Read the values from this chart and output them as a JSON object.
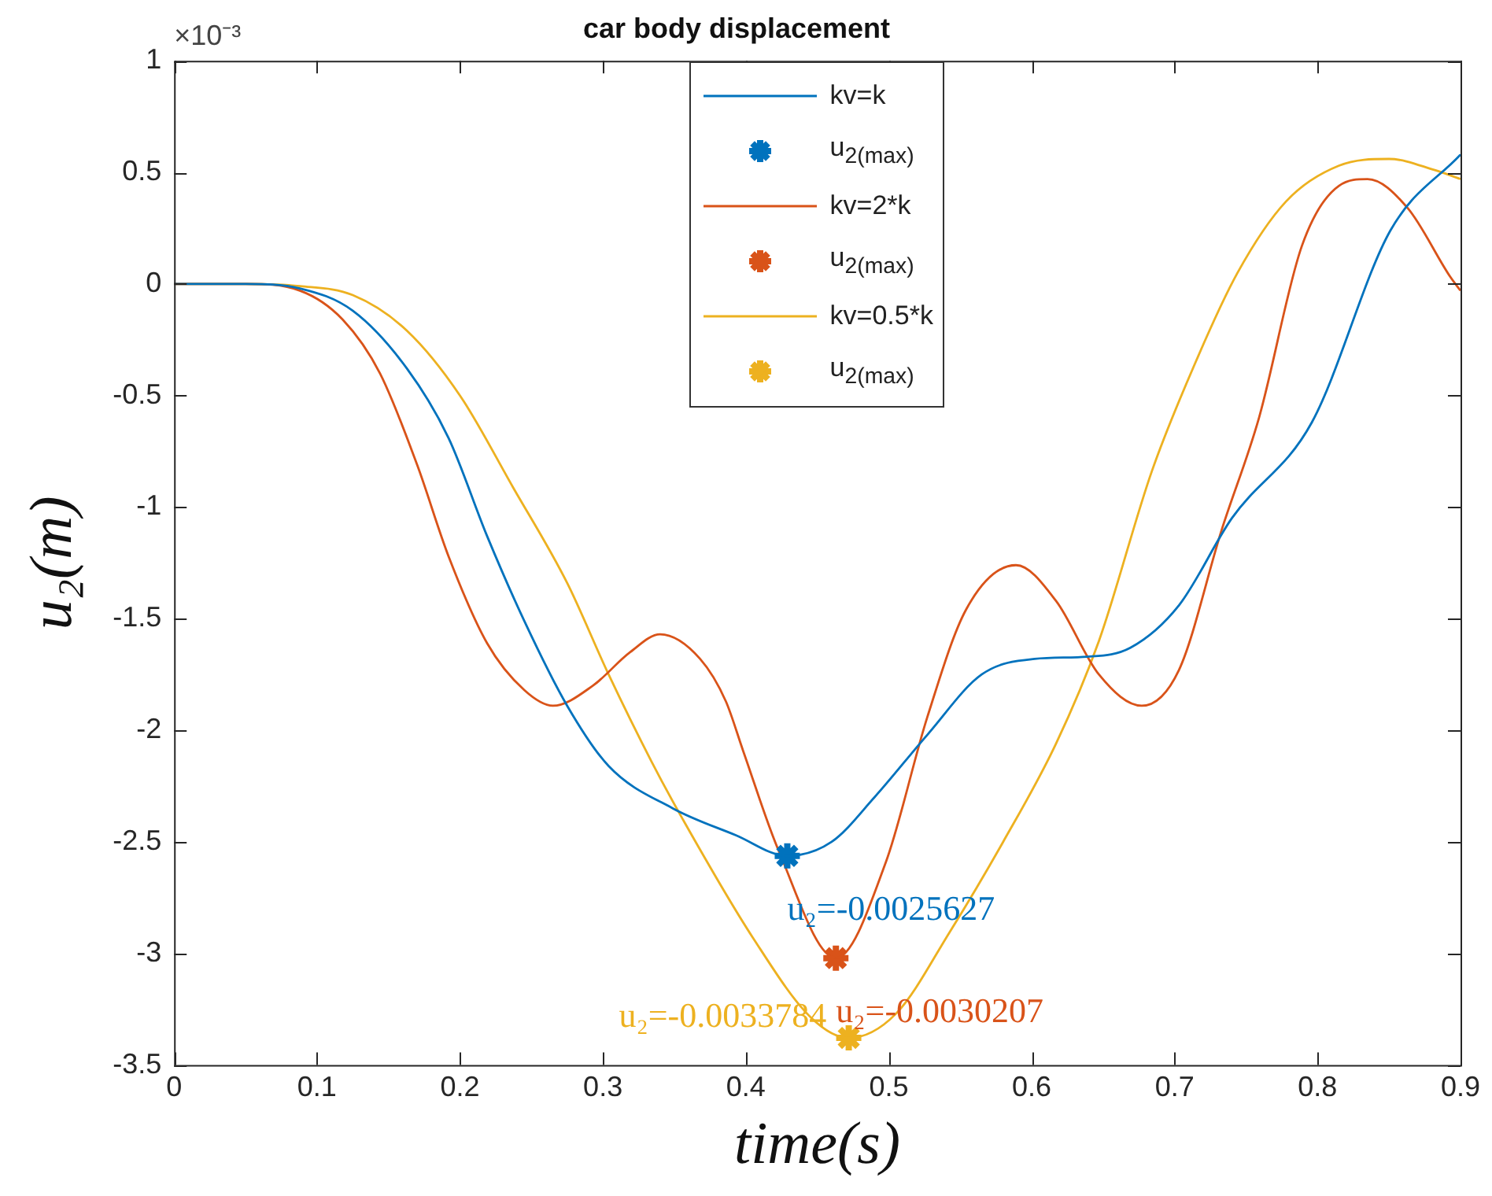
{
  "chart_data": {
    "type": "line",
    "title": "car body displacement",
    "xlabel": "time(s)",
    "ylabel": "u₂(m)",
    "xlim": [
      0,
      0.9
    ],
    "xticks": [
      0,
      0.1,
      0.2,
      0.3,
      0.4,
      0.5,
      0.6,
      0.7,
      0.8,
      0.9
    ],
    "ylim": [
      -3.5,
      1
    ],
    "yticks": [
      -3.5,
      -3,
      -2.5,
      -2,
      -1.5,
      -1,
      -0.5,
      0,
      0.5,
      1
    ],
    "grid": false,
    "legend": "top",
    "series": [
      {
        "name": "kv=k",
        "color": "#0072bd",
        "x": [
          0,
          0.05,
          0.088,
          0.125,
          0.163,
          0.192,
          0.219,
          0.245,
          0.275,
          0.304,
          0.349,
          0.393,
          0.429,
          0.46,
          0.49,
          0.527,
          0.565,
          0.602,
          0.639,
          0.669,
          0.703,
          0.74,
          0.796,
          0.851,
          0.9
        ],
        "values": [
          0,
          0,
          -0.02,
          -0.12,
          -0.38,
          -0.69,
          -1.13,
          -1.51,
          -1.89,
          -2.16,
          -2.35,
          -2.47,
          -2.5627,
          -2.5,
          -2.3,
          -2.02,
          -1.75,
          -1.68,
          -1.67,
          -1.63,
          -1.44,
          -1.05,
          -0.62,
          0.24,
          0.58
        ]
      },
      {
        "name": "u$_{2(max)}$",
        "type": "scatter",
        "marker": "cross",
        "color": "#0072bd",
        "x": [
          0.429
        ],
        "values": [
          -2.5627
        ]
      },
      {
        "name": "kv=2*k",
        "color": "#d95319",
        "x": [
          0,
          0.05,
          0.088,
          0.118,
          0.144,
          0.17,
          0.192,
          0.219,
          0.245,
          0.265,
          0.293,
          0.319,
          0.34,
          0.368,
          0.386,
          0.398,
          0.423,
          0.463,
          0.498,
          0.527,
          0.554,
          0.589,
          0.617,
          0.647,
          0.677,
          0.703,
          0.733,
          0.759,
          0.789,
          0.815,
          0.835,
          0.863,
          0.893,
          0.9
        ],
        "values": [
          0,
          0,
          -0.03,
          -0.16,
          -0.4,
          -0.81,
          -1.22,
          -1.61,
          -1.82,
          -1.89,
          -1.8,
          -1.65,
          -1.57,
          -1.68,
          -1.87,
          -2.09,
          -2.54,
          -3.0207,
          -2.59,
          -1.94,
          -1.46,
          -1.26,
          -1.42,
          -1.75,
          -1.89,
          -1.73,
          -1.1,
          -0.6,
          0.17,
          0.44,
          0.47,
          0.34,
          0.03,
          -0.03
        ]
      },
      {
        "name": "u$_{2(max)}$",
        "type": "scatter",
        "marker": "cross",
        "color": "#d95319",
        "x": [
          0.463
        ],
        "values": [
          -3.0207
        ]
      },
      {
        "name": "kv=0.5*k",
        "color": "#edb120",
        "x": [
          0,
          0.05,
          0.088,
          0.125,
          0.163,
          0.2,
          0.237,
          0.275,
          0.304,
          0.334,
          0.356,
          0.405,
          0.446,
          0.472,
          0.505,
          0.543,
          0.58,
          0.617,
          0.647,
          0.684,
          0.714,
          0.744,
          0.778,
          0.815,
          0.85,
          0.882,
          0.9
        ],
        "values": [
          0,
          0,
          -0.01,
          -0.05,
          -0.21,
          -0.5,
          -0.91,
          -1.34,
          -1.75,
          -2.14,
          -2.4,
          -2.93,
          -3.29,
          -3.3784,
          -3.27,
          -2.9,
          -2.5,
          -2.06,
          -1.6,
          -0.84,
          -0.36,
          0.05,
          0.37,
          0.53,
          0.56,
          0.51,
          0.47
        ]
      },
      {
        "name": "u$_{2(max)}$",
        "type": "scatter",
        "marker": "cross",
        "color": "#edb120",
        "x": [
          0.472
        ],
        "values": [
          -3.3784
        ]
      }
    ],
    "annotations": [
      "×10⁻³",
      {
        "text": "u₂=-0.0025627",
        "x": 0.429,
        "y": -2.5627
      },
      {
        "text": "u₂=-0.0030207",
        "x": 0.463,
        "y": -3.0207
      },
      {
        "text": "u₂=-0.0033784",
        "x": 0.472,
        "y": -3.3784
      }
    ]
  }
}
